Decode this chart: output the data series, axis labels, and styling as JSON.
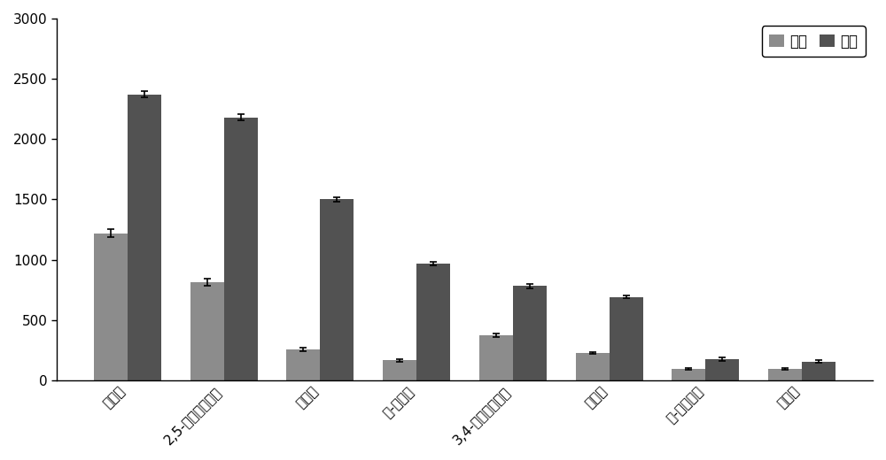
{
  "categories": [
    "隔马酸",
    "2,5-二羟基苯甲酸",
    "芥子酸",
    "反-阿魏酸",
    "3,4-二羟基苯甲酸",
    "咋啡酸",
    "反-对香豆酸",
    "香草酸"
  ],
  "yi_suan": [
    1220,
    810,
    255,
    165,
    375,
    225,
    95,
    95
  ],
  "jia_suan": [
    2370,
    2180,
    1500,
    970,
    780,
    690,
    175,
    155
  ],
  "yi_suan_err": [
    30,
    30,
    15,
    10,
    15,
    10,
    8,
    8
  ],
  "jia_suan_err": [
    25,
    25,
    20,
    15,
    15,
    10,
    12,
    12
  ],
  "yi_suan_color": "#8c8c8c",
  "jia_suan_color": "#525252",
  "legend_label_1": "乙酸",
  "legend_label_2": "甲酸",
  "ylim": [
    0,
    3000
  ],
  "yticks": [
    0,
    500,
    1000,
    1500,
    2000,
    2500,
    3000
  ],
  "background_color": "#ffffff",
  "bar_width": 0.35,
  "figsize": [
    10.0,
    5.2
  ],
  "dpi": 100
}
